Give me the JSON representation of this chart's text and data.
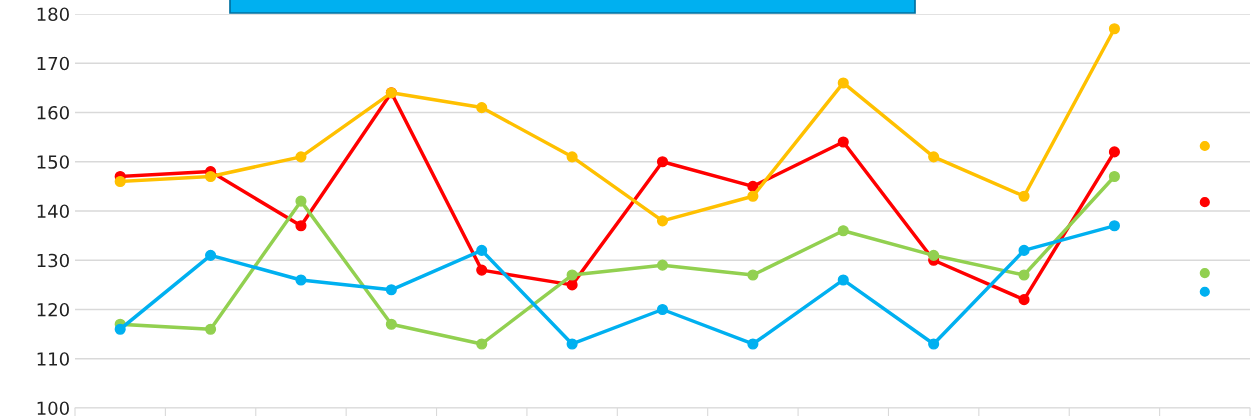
{
  "chart_data": {
    "type": "line",
    "categories": [
      null,
      null,
      null,
      null,
      null,
      null,
      null,
      null,
      null,
      null,
      null,
      null,
      null
    ],
    "series": [
      {
        "color": "#ff0000",
        "values": [
          147,
          148,
          137,
          164,
          128,
          125,
          150,
          145,
          154,
          130,
          122,
          152,
          null
        ]
      },
      {
        "color": "#ffc000",
        "values": [
          146,
          147,
          151,
          164,
          161,
          151,
          138,
          143,
          166,
          151,
          143,
          177,
          null
        ]
      },
      {
        "color": "#92d050",
        "values": [
          117,
          116,
          142,
          117,
          113,
          127,
          129,
          127,
          136,
          131,
          127,
          147,
          null
        ]
      },
      {
        "color": "#00b0f0",
        "values": [
          116,
          131,
          126,
          124,
          132,
          113,
          120,
          113,
          126,
          113,
          132,
          137,
          null
        ]
      },
      {
        "type": "scatter",
        "color": "#ffc000",
        "values": [
          null,
          null,
          null,
          null,
          null,
          null,
          null,
          null,
          null,
          null,
          null,
          null,
          153.2
        ]
      },
      {
        "type": "scatter",
        "color": "#ff0000",
        "values": [
          null,
          null,
          null,
          null,
          null,
          null,
          null,
          null,
          null,
          null,
          null,
          null,
          141.8
        ]
      },
      {
        "type": "scatter",
        "color": "#92d050",
        "values": [
          null,
          null,
          null,
          null,
          null,
          null,
          null,
          null,
          null,
          null,
          null,
          null,
          127.4
        ]
      },
      {
        "type": "scatter",
        "color": "#00b0f0",
        "values": [
          null,
          null,
          null,
          null,
          null,
          null,
          null,
          null,
          null,
          null,
          null,
          null,
          123.6
        ]
      }
    ],
    "ylim": [
      100,
      180
    ],
    "yticks": [
      100,
      110,
      120,
      130,
      140,
      150,
      160,
      170,
      180
    ],
    "grid": "y",
    "marker": "circle",
    "line_style": "solid",
    "legend": false,
    "tick_labels": "y"
  }
}
